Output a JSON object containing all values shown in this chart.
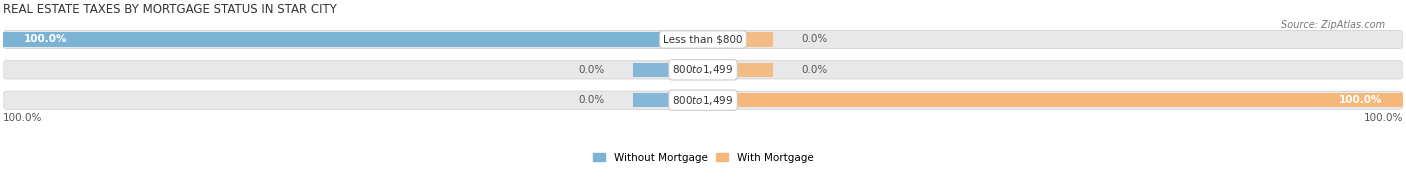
{
  "title": "Real Estate Taxes by Mortgage Status in Star City",
  "source": "Source: ZipAtlas.com",
  "rows": [
    {
      "label": "Less than $800",
      "without_mortgage": 100.0,
      "with_mortgage": 0.0
    },
    {
      "label": "$800 to $1,499",
      "without_mortgage": 0.0,
      "with_mortgage": 0.0
    },
    {
      "label": "$800 to $1,499",
      "without_mortgage": 0.0,
      "with_mortgage": 100.0
    }
  ],
  "color_without": "#7ab3d4",
  "color_with": "#f5b87a",
  "bar_bg": "#e8e8e8",
  "figsize": [
    14.06,
    1.96
  ],
  "dpi": 100,
  "title_fontsize": 8.5,
  "label_fontsize": 7.5,
  "tick_fontsize": 7.5,
  "legend_fontsize": 7.5,
  "source_fontsize": 7.0
}
